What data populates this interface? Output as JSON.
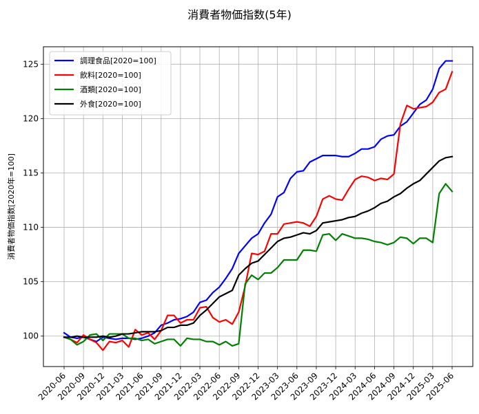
{
  "chart_data": {
    "type": "line",
    "title": "消費者物価指数(5年)",
    "xlabel": "",
    "ylabel": "消費者物価指数[2020年=100]",
    "ylim": [
      97.2,
      126.6
    ],
    "yticks": [
      100,
      105,
      110,
      115,
      120,
      125
    ],
    "grid": true,
    "legend_position": "top-left",
    "x": [
      "2020-06",
      "2020-07",
      "2020-08",
      "2020-09",
      "2020-10",
      "2020-11",
      "2020-12",
      "2021-01",
      "2021-02",
      "2021-03",
      "2021-04",
      "2021-05",
      "2021-06",
      "2021-07",
      "2021-08",
      "2021-09",
      "2021-10",
      "2021-11",
      "2021-12",
      "2022-01",
      "2022-02",
      "2022-03",
      "2022-04",
      "2022-05",
      "2022-06",
      "2022-07",
      "2022-08",
      "2022-09",
      "2022-10",
      "2022-11",
      "2022-12",
      "2023-01",
      "2023-02",
      "2023-03",
      "2023-04",
      "2023-05",
      "2023-06",
      "2023-07",
      "2023-08",
      "2023-09",
      "2023-10",
      "2023-11",
      "2023-12",
      "2024-01",
      "2024-02",
      "2024-03",
      "2024-04",
      "2024-05",
      "2024-06",
      "2024-07",
      "2024-08",
      "2024-09",
      "2024-10",
      "2024-11",
      "2024-12",
      "2025-01",
      "2025-02",
      "2025-03",
      "2025-04",
      "2025-05",
      "2025-06"
    ],
    "xticks": [
      "2020-06",
      "2020-09",
      "2020-12",
      "2021-03",
      "2021-06",
      "2021-09",
      "2021-12",
      "2022-03",
      "2022-06",
      "2022-09",
      "2022-12",
      "2023-03",
      "2023-06",
      "2023-09",
      "2023-12",
      "2024-03",
      "2024-06",
      "2024-09",
      "2024-12",
      "2025-03",
      "2025-06"
    ],
    "series": [
      {
        "name": "調理食品[2020=100]",
        "color": "#0000ff",
        "values": [
          100.3,
          99.9,
          99.8,
          99.9,
          99.7,
          99.5,
          99.9,
          99.8,
          99.7,
          99.8,
          99.8,
          99.7,
          99.8,
          100.0,
          100.3,
          101.0,
          101.2,
          101.5,
          101.6,
          101.8,
          102.2,
          103.1,
          103.3,
          104.0,
          104.5,
          105.3,
          106.2,
          107.6,
          108.3,
          109.0,
          109.4,
          110.4,
          111.2,
          112.8,
          113.2,
          114.5,
          115.1,
          115.2,
          116.0,
          116.3,
          116.6,
          116.6,
          116.6,
          116.5,
          116.5,
          116.8,
          117.2,
          117.2,
          117.4,
          118.1,
          118.4,
          118.5,
          119.3,
          119.7,
          120.5,
          121.3,
          121.7,
          122.7,
          124.6,
          125.3,
          125.3
        ]
      },
      {
        "name": "飲料[2020=100]",
        "color": "#ff0000",
        "values": [
          99.9,
          99.7,
          99.4,
          100.1,
          99.7,
          99.4,
          98.7,
          99.5,
          99.4,
          99.6,
          99.0,
          100.6,
          100.1,
          100.3,
          99.7,
          100.5,
          101.9,
          101.9,
          101.2,
          101.5,
          101.5,
          102.6,
          102.7,
          101.7,
          101.3,
          101.5,
          101.1,
          102.2,
          104.6,
          107.6,
          107.5,
          107.8,
          109.4,
          109.4,
          110.3,
          110.4,
          110.5,
          110.4,
          110.1,
          111.0,
          112.6,
          112.9,
          112.6,
          112.5,
          113.5,
          114.4,
          114.7,
          114.6,
          114.3,
          114.5,
          114.4,
          114.9,
          119.5,
          121.2,
          120.9,
          121.0,
          121.1,
          121.5,
          122.4,
          122.7,
          124.3
        ]
      },
      {
        "name": "酒類[2020=100]",
        "color": "#008000",
        "values": [
          99.9,
          99.7,
          99.2,
          99.5,
          100.1,
          100.2,
          99.6,
          100.2,
          100.2,
          100.2,
          99.8,
          99.8,
          99.6,
          99.7,
          99.3,
          99.5,
          99.7,
          99.7,
          99.1,
          99.8,
          99.7,
          99.7,
          99.5,
          99.5,
          99.2,
          99.5,
          99.1,
          99.3,
          104.8,
          105.6,
          105.2,
          105.8,
          105.8,
          106.3,
          107.0,
          107.0,
          107.0,
          107.9,
          107.9,
          107.8,
          109.3,
          109.4,
          108.8,
          109.4,
          109.2,
          109.0,
          109.0,
          108.9,
          108.7,
          108.6,
          108.4,
          108.6,
          109.1,
          109.0,
          108.5,
          109.0,
          109.0,
          108.6,
          113.1,
          114.0,
          113.3
        ]
      },
      {
        "name": "外食[2020=100]",
        "color": "#000000",
        "values": [
          99.9,
          99.9,
          100.0,
          99.9,
          99.9,
          99.9,
          100.0,
          99.9,
          100.0,
          100.2,
          100.2,
          100.3,
          100.4,
          100.4,
          100.4,
          100.5,
          100.8,
          100.8,
          101.0,
          101.0,
          101.2,
          101.9,
          102.4,
          103.0,
          103.6,
          103.9,
          104.2,
          105.6,
          106.2,
          106.7,
          106.9,
          107.5,
          108.1,
          108.7,
          109.0,
          109.1,
          109.3,
          109.5,
          109.4,
          109.7,
          110.4,
          110.5,
          110.6,
          110.7,
          110.9,
          111.0,
          111.3,
          111.5,
          111.8,
          112.2,
          112.4,
          112.8,
          113.1,
          113.6,
          114.0,
          114.3,
          114.9,
          115.5,
          116.1,
          116.4,
          116.5
        ]
      }
    ]
  }
}
